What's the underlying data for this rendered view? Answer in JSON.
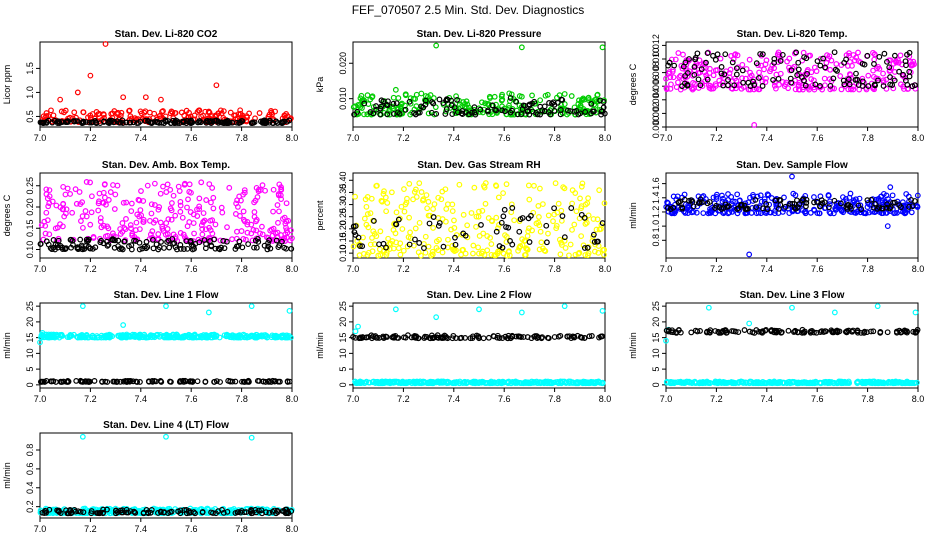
{
  "figure_title": "FEF_070507  2.5 Min. Std. Dev. Diagnostics",
  "colors": {
    "red": "#ff0000",
    "black": "#000000",
    "green": "#00cc00",
    "magenta": "#ff00ff",
    "yellow": "#ffff00",
    "blue": "#0000ff",
    "cyan": "#00ffff"
  },
  "chart_data": [
    {
      "type": "scatter",
      "title": "Stan. Dev. Li-820 CO2",
      "ylabel": "Licor ppm",
      "xlim": [
        7.0,
        8.0
      ],
      "ylim": [
        0.28,
        2.05
      ],
      "xticks": [
        "7.0",
        "7.2",
        "7.4",
        "7.6",
        "7.8",
        "8.0"
      ],
      "yticks": [
        "0.5",
        "1.0",
        "1.5"
      ],
      "series": [
        {
          "name": "colored",
          "color": "red",
          "base": 0.38,
          "spread": 0.25,
          "count": 220,
          "outliers": [
            [
              7.26,
              2.02
            ],
            [
              7.2,
              1.35
            ],
            [
              7.15,
              1.0
            ],
            [
              7.7,
              1.15
            ],
            [
              7.42,
              0.9
            ],
            [
              7.48,
              0.85
            ],
            [
              7.08,
              0.85
            ],
            [
              7.33,
              0.9
            ]
          ]
        },
        {
          "name": "black",
          "color": "black",
          "base": 0.36,
          "spread": 0.06,
          "count": 180
        }
      ]
    },
    {
      "type": "scatter",
      "title": "Stan. Dev. Li-820 Pressure",
      "ylabel": "kPa",
      "xlim": [
        7.0,
        8.0
      ],
      "ylim": [
        0.002,
        0.026
      ],
      "xticks": [
        "7.0",
        "7.2",
        "7.4",
        "7.6",
        "7.8",
        "8.0"
      ],
      "yticks": [
        "0.010",
        "0.020"
      ],
      "series": [
        {
          "name": "colored",
          "color": "green",
          "base": 0.0055,
          "spread": 0.006,
          "count": 260,
          "outliers": [
            [
              7.33,
              0.025
            ],
            [
              7.67,
              0.0245
            ],
            [
              7.99,
              0.0245
            ],
            [
              7.17,
              0.0125
            ],
            [
              7.62,
              0.0115
            ]
          ]
        },
        {
          "name": "black",
          "color": "black",
          "base": 0.0055,
          "spread": 0.005,
          "count": 120
        }
      ]
    },
    {
      "type": "scatter",
      "title": "Stan. Dev. Li-820 Temp.",
      "ylabel": "degrees C",
      "xlim": [
        7.0,
        8.0
      ],
      "ylim": [
        0.0,
        0.0125
      ],
      "xticks": [
        "7.0",
        "7.2",
        "7.4",
        "7.6",
        "7.8",
        "8.0"
      ],
      "yticks": [
        "0.000",
        "0.002",
        "0.004",
        "0.006",
        "0.008",
        "0.010",
        "0.012"
      ],
      "series": [
        {
          "name": "colored",
          "color": "magenta",
          "base": 0.0055,
          "spread": 0.0055,
          "count": 300,
          "outliers": [
            [
              7.35,
              0.0003
            ]
          ]
        },
        {
          "name": "black",
          "color": "black",
          "base": 0.006,
          "spread": 0.005,
          "count": 120
        }
      ]
    },
    {
      "type": "scatter",
      "title": "Stan. Dev. Amb. Box Temp.",
      "ylabel": "degrees C",
      "xlim": [
        7.0,
        8.0
      ],
      "ylim": [
        0.08,
        0.28
      ],
      "xticks": [
        "7.0",
        "7.2",
        "7.4",
        "7.6",
        "7.8",
        "8.0"
      ],
      "yticks": [
        "0.10",
        "0.15",
        "0.20",
        "0.25"
      ],
      "series": [
        {
          "name": "colored",
          "color": "magenta",
          "base": 0.12,
          "spread": 0.14,
          "count": 320
        },
        {
          "name": "black",
          "color": "black",
          "base": 0.1,
          "spread": 0.025,
          "count": 140
        }
      ]
    },
    {
      "type": "scatter",
      "title": "Stan. Dev. Gas Stream RH",
      "ylabel": "percent",
      "xlim": [
        7.0,
        8.0
      ],
      "ylim": [
        0.08,
        0.43
      ],
      "xticks": [
        "7.0",
        "7.2",
        "7.4",
        "7.6",
        "7.8",
        "8.0"
      ],
      "yticks": [
        "0.10",
        "0.15",
        "0.20",
        "0.25",
        "0.30",
        "0.35",
        "0.40"
      ],
      "series": [
        {
          "name": "colored",
          "color": "yellow",
          "base": 0.09,
          "spread": 0.3,
          "count": 300
        },
        {
          "name": "black",
          "color": "black",
          "base": 0.12,
          "spread": 0.18,
          "count": 60
        }
      ]
    },
    {
      "type": "scatter",
      "title": "Stan. Dev. Sample Flow",
      "ylabel": "ml/min",
      "xlim": [
        7.0,
        8.0
      ],
      "ylim": [
        0.55,
        1.75
      ],
      "xticks": [
        "7.0",
        "7.2",
        "7.4",
        "7.6",
        "7.8",
        "8.0"
      ],
      "yticks": [
        "0.8",
        "1.0",
        "1.2",
        "1.4",
        "1.6"
      ],
      "series": [
        {
          "name": "colored",
          "color": "blue",
          "base": 1.18,
          "spread": 0.28,
          "count": 320,
          "outliers": [
            [
              7.33,
              0.6
            ],
            [
              7.5,
              1.7
            ],
            [
              7.88,
              1.0
            ],
            [
              7.89,
              1.55
            ]
          ]
        },
        {
          "name": "black",
          "color": "black",
          "base": 1.24,
          "spread": 0.14,
          "count": 100
        }
      ]
    },
    {
      "type": "scatter",
      "title": "Stan. Dev. Line 1 Flow",
      "ylabel": "ml/min",
      "xlim": [
        7.0,
        8.0
      ],
      "ylim": [
        -1,
        26
      ],
      "xticks": [
        "7.0",
        "7.2",
        "7.4",
        "7.6",
        "7.8",
        "8.0"
      ],
      "yticks": [
        "0",
        "5",
        "10",
        "15",
        "20",
        "25"
      ],
      "series": [
        {
          "name": "colored",
          "color": "cyan",
          "base": 15.0,
          "spread": 1.0,
          "count": 320,
          "outliers": [
            [
              7.01,
              16.5
            ],
            [
              7.0,
              13.5
            ],
            [
              7.17,
              25
            ],
            [
              7.33,
              19
            ],
            [
              7.5,
              25
            ],
            [
              7.67,
              23
            ],
            [
              7.84,
              25
            ],
            [
              7.99,
              23.5
            ]
          ]
        },
        {
          "name": "black",
          "color": "black",
          "base": 0.9,
          "spread": 0.4,
          "count": 120
        }
      ]
    },
    {
      "type": "scatter",
      "title": "Stan. Dev. Line 2 Flow",
      "ylabel": "ml/min",
      "xlim": [
        7.0,
        8.0
      ],
      "ylim": [
        -1,
        26
      ],
      "xticks": [
        "7.0",
        "7.2",
        "7.4",
        "7.6",
        "7.8",
        "8.0"
      ],
      "yticks": [
        "0",
        "5",
        "10",
        "15",
        "20",
        "25"
      ],
      "series": [
        {
          "name": "colored",
          "color": "cyan",
          "base": 0.5,
          "spread": 0.6,
          "count": 320,
          "outliers": [
            [
              7.01,
              17
            ],
            [
              7.02,
              18.5
            ],
            [
              7.17,
              24
            ],
            [
              7.33,
              21.5
            ],
            [
              7.5,
              24
            ],
            [
              7.67,
              23
            ],
            [
              7.84,
              25
            ],
            [
              7.99,
              23.5
            ]
          ]
        },
        {
          "name": "black",
          "color": "black",
          "base": 14.8,
          "spread": 1.0,
          "count": 130
        }
      ]
    },
    {
      "type": "scatter",
      "title": "Stan. Dev. Line 3 Flow",
      "ylabel": "ml/min",
      "xlim": [
        7.0,
        8.0
      ],
      "ylim": [
        -1,
        26
      ],
      "xticks": [
        "7.0",
        "7.2",
        "7.4",
        "7.6",
        "7.8",
        "8.0"
      ],
      "yticks": [
        "0",
        "5",
        "10",
        "15",
        "20",
        "25"
      ],
      "series": [
        {
          "name": "colored",
          "color": "cyan",
          "base": 0.5,
          "spread": 0.6,
          "count": 320,
          "outliers": [
            [
              7.0,
              14
            ],
            [
              7.01,
              17.5
            ],
            [
              7.17,
              24.5
            ],
            [
              7.33,
              19.5
            ],
            [
              7.5,
              24.5
            ],
            [
              7.67,
              23
            ],
            [
              7.84,
              25
            ],
            [
              7.99,
              23
            ]
          ]
        },
        {
          "name": "black",
          "color": "black",
          "base": 16.5,
          "spread": 1.0,
          "count": 130
        }
      ]
    },
    {
      "type": "scatter",
      "title": "Stan. Dev. Line 4 (LT) Flow",
      "ylabel": "ml/min",
      "xlim": [
        7.0,
        8.0
      ],
      "ylim": [
        0.08,
        0.98
      ],
      "xticks": [
        "7.0",
        "7.2",
        "7.4",
        "7.6",
        "7.8",
        "8.0"
      ],
      "yticks": [
        "0.2",
        "0.4",
        "0.6",
        "0.8"
      ],
      "series": [
        {
          "name": "colored",
          "color": "cyan",
          "base": 0.13,
          "spread": 0.05,
          "count": 320,
          "outliers": [
            [
              7.17,
              0.94
            ],
            [
              7.5,
              0.94
            ],
            [
              7.84,
              0.93
            ]
          ]
        },
        {
          "name": "black",
          "color": "black",
          "base": 0.13,
          "spread": 0.04,
          "count": 120
        }
      ]
    }
  ]
}
